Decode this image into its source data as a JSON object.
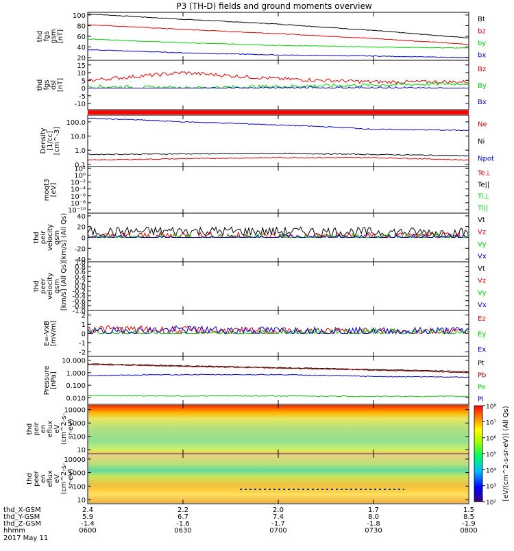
{
  "title": "P3 (TH-D) fields and ground moments overview",
  "date_label": "2017 May 11",
  "colors": {
    "black": "#000000",
    "red": "#e00000",
    "green": "#00d000",
    "blue": "#0000d0",
    "pressure_red": "#a00000",
    "sat_bar": "#ff0000"
  },
  "ephemeris": {
    "row_labels": [
      "thd_X-GSM",
      "thd_Y-GSM",
      "thd_Z-GSM",
      "hhmm"
    ],
    "columns": [
      [
        "2.4",
        "5.9",
        "-1.4",
        "0600"
      ],
      [
        "2.2",
        "6.7",
        "-1.6",
        "0630"
      ],
      [
        "2.0",
        "7.4",
        "-1.7",
        "0700"
      ],
      [
        "1.7",
        "8.0",
        "-1.8",
        "0730"
      ],
      [
        "1.5",
        "8.5",
        "-1.9",
        "0800"
      ]
    ]
  },
  "colorbar": {
    "label": "[eV/(cm^2-s-sr-eV)] (All Qs)",
    "ticks": [
      "10^2",
      "10^3",
      "10^4",
      "10^5",
      "10^6",
      "10^7",
      "10^8"
    ]
  },
  "chart_data": [
    {
      "type": "line",
      "id": "fgs_gsm",
      "ylabel": [
        "thd",
        "fgs",
        "gsm",
        "[nT]"
      ],
      "ytick_labels": [
        "20",
        "40",
        "60",
        "80",
        "100"
      ],
      "ylim": [
        15,
        105
      ],
      "x": [
        "0600",
        "0630",
        "0700",
        "0730",
        "0800"
      ],
      "series": [
        {
          "name": "Bt",
          "color": "black",
          "values": [
            102,
            92,
            83,
            71,
            57
          ]
        },
        {
          "name": "bz",
          "color": "red",
          "values": [
            82,
            73,
            65,
            56,
            45
          ]
        },
        {
          "name": "by",
          "color": "green",
          "values": [
            55,
            48,
            43,
            40,
            38
          ]
        },
        {
          "name": "bx",
          "color": "blue",
          "values": [
            35,
            29,
            25,
            23,
            20
          ]
        }
      ]
    },
    {
      "type": "line",
      "id": "fgs_dsl",
      "ylabel": [
        "thd",
        "fgs",
        "dsl",
        "[nT]"
      ],
      "ytick_labels": [
        "-10",
        "-5",
        "0",
        "5",
        "10",
        "15"
      ],
      "ylim": [
        -14,
        18
      ],
      "x": [
        "0600",
        "0630",
        "0700",
        "0730",
        "0800"
      ],
      "series": [
        {
          "name": "Bz",
          "color": "red",
          "values": [
            5,
            10,
            6,
            4,
            4
          ]
        },
        {
          "name": "By",
          "color": "green",
          "values": [
            1,
            0,
            1,
            2,
            3
          ]
        },
        {
          "name": "Bx",
          "color": "blue",
          "values": [
            -2,
            -1,
            0,
            0,
            -1
          ]
        }
      ]
    },
    {
      "type": "line",
      "id": "density",
      "scale": "log",
      "ylabel": [
        "Density",
        "[1/cc]",
        "[cm^-3]"
      ],
      "ytick_labels": [
        "0.1",
        "1.0",
        "10.0",
        "100.0"
      ],
      "ylim": [
        0.07,
        300
      ],
      "x": [
        "0600",
        "0630",
        "0700",
        "0730",
        "0800"
      ],
      "series": [
        {
          "name": "Ne",
          "color": "red",
          "values": [
            0.2,
            0.25,
            0.3,
            0.3,
            0.2
          ]
        },
        {
          "name": "Ni",
          "color": "black",
          "values": [
            0.5,
            0.55,
            0.6,
            0.5,
            0.4
          ]
        },
        {
          "name": "Npot",
          "color": "blue",
          "values": [
            180,
            100,
            60,
            30,
            25
          ]
        }
      ]
    },
    {
      "type": "line",
      "id": "moqt3",
      "scale": "log",
      "ylabel": [
        "moqt3",
        "[eV]"
      ],
      "ytick_labels": [
        "10^-10",
        "10^-8",
        "10^-6",
        "10^-4",
        "10^-2",
        "10^0",
        "10^2"
      ],
      "ylim": [
        1e-11,
        300
      ],
      "legend": [
        "Te⊥",
        "Te||",
        "Ti⊥",
        "Ti||"
      ]
    },
    {
      "type": "line",
      "id": "peir_velocity",
      "ylabel": [
        "thd",
        "peir",
        "velocity",
        "gsm",
        "[km/s] (All Qs)"
      ],
      "ytick_labels": [
        "-40",
        "-20",
        "0",
        "20",
        "40"
      ],
      "ylim": [
        -45,
        45
      ],
      "x": [
        "0600",
        "0630",
        "0700",
        "0730",
        "0800"
      ],
      "series": [
        {
          "name": "Vt",
          "color": "black",
          "values": [
            10,
            12,
            11,
            10,
            9
          ]
        },
        {
          "name": "Vz",
          "color": "red",
          "values": [
            0,
            2,
            0,
            1,
            0
          ]
        },
        {
          "name": "Vy",
          "color": "green",
          "values": [
            -3,
            -2,
            -1,
            -2,
            -1
          ]
        },
        {
          "name": "Vx",
          "color": "blue",
          "values": [
            -4,
            -5,
            -3,
            -2,
            -2
          ]
        }
      ]
    },
    {
      "type": "line",
      "id": "peer_velocity",
      "ylabel": [
        "thd",
        "peer",
        "velocity",
        "gsm",
        "[km/s] (All Qs)"
      ],
      "ytick_labels": [
        "-1.0",
        "-0.8",
        "-0.6",
        "-0.4",
        "-0.2",
        "0.0",
        "0.2",
        "0.4",
        "0.6",
        "0.8",
        "1.0"
      ],
      "ylim": [
        -1,
        1
      ],
      "legend": [
        "Vt",
        "Vz",
        "Vy",
        "Vx"
      ]
    },
    {
      "type": "line",
      "id": "e_vxb",
      "ylabel": [
        "E=-VxB",
        "[mV/m]"
      ],
      "ytick_labels": [
        "-2",
        "-1",
        "0",
        "1",
        "2"
      ],
      "ylim": [
        -2.5,
        2.5
      ],
      "x": [
        "0600",
        "0630",
        "0700",
        "0730",
        "0800"
      ],
      "series": [
        {
          "name": "Ez",
          "color": "red",
          "values": [
            0.5,
            0.3,
            0.2,
            0.2,
            0.2
          ]
        },
        {
          "name": "Ey",
          "color": "green",
          "values": [
            0,
            -0.3,
            0,
            0.1,
            0
          ]
        },
        {
          "name": "Ex",
          "color": "blue",
          "values": [
            0.2,
            0.4,
            0.3,
            0.2,
            0.3
          ]
        }
      ]
    },
    {
      "type": "line",
      "id": "pressure",
      "scale": "log",
      "ylabel": [
        "Pressure",
        "[nPa]"
      ],
      "ytick_labels": [
        "0.010",
        "0.100",
        "1.000",
        "10.000"
      ],
      "ylim": [
        0.003,
        20
      ],
      "x": [
        "0600",
        "0630",
        "0700",
        "0730",
        "0800"
      ],
      "series": [
        {
          "name": "Pt",
          "color": "black",
          "values": [
            5,
            3.5,
            2.5,
            1.8,
            1.2
          ]
        },
        {
          "name": "Pb",
          "color": "pressure_red",
          "values": [
            4.5,
            3.2,
            2.3,
            1.6,
            1.0
          ]
        },
        {
          "name": "Pe",
          "color": "green",
          "values": [
            0.015,
            0.014,
            0.014,
            0.013,
            0.013
          ]
        },
        {
          "name": "Pi",
          "color": "blue",
          "values": [
            0.6,
            0.7,
            0.7,
            0.5,
            0.45
          ]
        }
      ]
    },
    {
      "type": "heatmap",
      "id": "peir_spec",
      "ylabel": [
        "thd",
        "peir",
        "en",
        "eflux",
        "eV",
        "(cm^2-s-",
        "sr-eV)"
      ],
      "ytick_labels": [
        "10",
        "100",
        "1000",
        "10000"
      ],
      "yrange_ev": [
        5,
        25000
      ]
    },
    {
      "type": "heatmap",
      "id": "peer_spec",
      "ylabel": [
        "thd",
        "peer",
        "en",
        "eflux",
        "eV",
        "(cm^2-s-",
        "sr-eV)"
      ],
      "ytick_labels": [
        "10",
        "100",
        "1000",
        "10000"
      ],
      "yrange_ev": [
        5,
        25000
      ]
    }
  ]
}
